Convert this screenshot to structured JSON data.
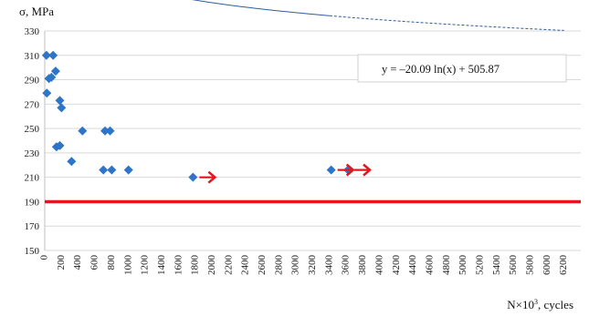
{
  "chart_data": {
    "type": "scatter",
    "ylabel_symbol": "σ",
    "ylabel_unit": ", MPa",
    "xlabel_prefix": "N×10",
    "xlabel_sup": "3",
    "xlabel_suffix": ", cycles",
    "xlim": [
      0,
      6400
    ],
    "ylim": [
      150,
      330
    ],
    "xticks": [
      0,
      200,
      400,
      600,
      800,
      1000,
      1200,
      1400,
      1600,
      1800,
      2000,
      2200,
      2400,
      2600,
      2800,
      3000,
      3200,
      3400,
      3600,
      3800,
      4000,
      4200,
      4400,
      4600,
      4800,
      5000,
      5200,
      5400,
      5600,
      5800,
      6000,
      6200
    ],
    "yticks": [
      150,
      170,
      190,
      210,
      230,
      250,
      270,
      290,
      310,
      330
    ],
    "grid": "horizontal",
    "points": [
      {
        "x": 20,
        "y": 310
      },
      {
        "x": 100,
        "y": 310
      },
      {
        "x": 25,
        "y": 279
      },
      {
        "x": 50,
        "y": 291
      },
      {
        "x": 80,
        "y": 292
      },
      {
        "x": 130,
        "y": 297
      },
      {
        "x": 180,
        "y": 273
      },
      {
        "x": 200,
        "y": 267
      },
      {
        "x": 140,
        "y": 235
      },
      {
        "x": 180,
        "y": 236
      },
      {
        "x": 320,
        "y": 223
      },
      {
        "x": 450,
        "y": 248
      },
      {
        "x": 720,
        "y": 248
      },
      {
        "x": 780,
        "y": 248
      },
      {
        "x": 700,
        "y": 216
      },
      {
        "x": 800,
        "y": 216
      },
      {
        "x": 1000,
        "y": 216
      },
      {
        "x": 1770,
        "y": 210
      },
      {
        "x": 3420,
        "y": 216
      },
      {
        "x": 3620,
        "y": 216
      }
    ],
    "runouts": [
      {
        "x": 1770,
        "y": 210
      },
      {
        "x": 3420,
        "y": 216
      },
      {
        "x": 3620,
        "y": 216
      }
    ],
    "trendline": {
      "a": -20.09,
      "b": 505.87,
      "x_min": 60,
      "x_max": 6200,
      "solid_to": 3400
    },
    "equation": "y = –20.09 ln(x) + 505.87",
    "limit_line": {
      "y": 190
    },
    "colors": {
      "points": "#2e75c9",
      "runout": "#e8141c",
      "limit": "#e8141c",
      "trend": "#2f5d9a",
      "grid": "#d9d9d9"
    }
  }
}
